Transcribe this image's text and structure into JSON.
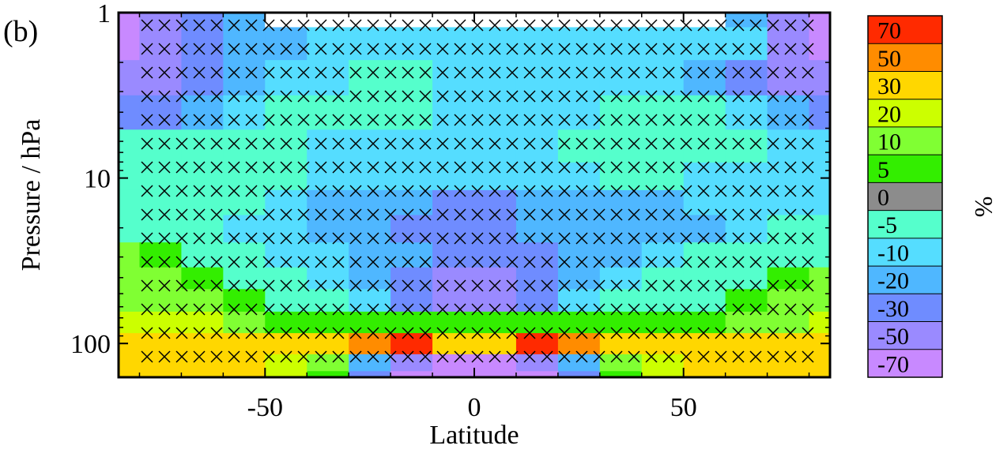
{
  "panel_label": "(b)",
  "chart_data": {
    "type": "heatmap",
    "title": "",
    "xlabel": "Latitude",
    "ylabel": "Pressure / hPa",
    "colorbar_unit": "%",
    "x_range": [
      -85,
      85
    ],
    "y_range": [
      1,
      160
    ],
    "y_scale": "log",
    "y_reversed": true,
    "x_ticks": [
      -50,
      0,
      50
    ],
    "y_ticks": [
      1,
      10,
      100
    ],
    "levels": [
      "70",
      "50",
      "30",
      "20",
      "10",
      "5",
      "0",
      "-5",
      "-10",
      "-20",
      "-30",
      "-50",
      "-70"
    ],
    "colors": [
      "#ff2a00",
      "#ff8c00",
      "#ffd700",
      "#ccff00",
      "#80ff33",
      "#33ee00",
      "#8c8c8c",
      "#55ffcc",
      "#55ddff",
      "#4fb7ff",
      "#6f8cff",
      "#9a8aff",
      "#c889ff"
    ],
    "lat": [
      -85,
      -75,
      -65,
      -55,
      -45,
      -35,
      -25,
      -15,
      -5,
      5,
      15,
      25,
      35,
      45,
      55,
      65,
      75,
      85
    ],
    "pressure": [
      1,
      1.5,
      2.5,
      4,
      6.5,
      10,
      14,
      20,
      30,
      40,
      55,
      75,
      100,
      135,
      160
    ],
    "values": [
      [
        -60,
        -40,
        -30,
        -15,
        null,
        null,
        null,
        null,
        null,
        null,
        null,
        null,
        null,
        null,
        null,
        -15,
        -40,
        -60
      ],
      [
        -60,
        -40,
        -30,
        -15,
        -12,
        -8,
        -8,
        -8,
        -8,
        -8,
        -8,
        -8,
        -8,
        -8,
        -8,
        -10,
        -35,
        -55
      ],
      [
        -45,
        -35,
        -25,
        -15,
        -8,
        -8,
        -4,
        -4,
        -8,
        -8,
        -8,
        -8,
        -8,
        -8,
        -15,
        -25,
        -40,
        -50
      ],
      [
        -25,
        -25,
        -15,
        -8,
        -3,
        -3,
        -3,
        -3,
        -8,
        -8,
        -8,
        -8,
        -3,
        -3,
        -3,
        -8,
        -15,
        -25
      ],
      [
        -4,
        -4,
        -4,
        -4,
        -4,
        -8,
        -8,
        -8,
        -8,
        -8,
        -8,
        -3,
        -3,
        -3,
        -3,
        -3,
        -8,
        -8
      ],
      [
        -3,
        -3,
        -3,
        -3,
        -3,
        -8,
        -8,
        -8,
        -8,
        -8,
        -8,
        -8,
        -3,
        -3,
        -8,
        -8,
        -8,
        -8
      ],
      [
        -3,
        -3,
        -3,
        -3,
        -8,
        -15,
        -15,
        -15,
        -25,
        -25,
        -15,
        -15,
        -15,
        -15,
        -8,
        -8,
        -8,
        -8
      ],
      [
        -3,
        -3,
        -3,
        -8,
        -8,
        -15,
        -15,
        -25,
        -25,
        -25,
        -15,
        -15,
        -15,
        -15,
        -15,
        -8,
        -3,
        -3
      ],
      [
        15,
        8,
        -3,
        -3,
        -8,
        -8,
        -15,
        -15,
        -25,
        -25,
        -25,
        -15,
        -15,
        -8,
        -3,
        -3,
        -3,
        -3
      ],
      [
        15,
        15,
        8,
        -3,
        -3,
        -8,
        -15,
        -25,
        -40,
        -40,
        -25,
        -15,
        -8,
        -3,
        -3,
        -3,
        8,
        15
      ],
      [
        15,
        15,
        15,
        8,
        -3,
        -3,
        -8,
        -25,
        -40,
        -40,
        -25,
        -8,
        -3,
        -3,
        -3,
        8,
        15,
        15
      ],
      [
        25,
        25,
        25,
        15,
        8,
        8,
        8,
        8,
        8,
        8,
        8,
        8,
        8,
        8,
        8,
        15,
        15,
        25
      ],
      [
        40,
        40,
        40,
        40,
        40,
        40,
        60,
        80,
        40,
        40,
        80,
        60,
        40,
        40,
        40,
        40,
        40,
        40
      ],
      [
        40,
        40,
        40,
        40,
        25,
        15,
        -15,
        -40,
        -60,
        -60,
        -40,
        -15,
        15,
        25,
        40,
        40,
        40,
        40
      ],
      [
        40,
        40,
        40,
        40,
        25,
        8,
        -25,
        -60,
        -80,
        -80,
        -60,
        -25,
        8,
        25,
        40,
        40,
        40,
        40
      ]
    ]
  }
}
